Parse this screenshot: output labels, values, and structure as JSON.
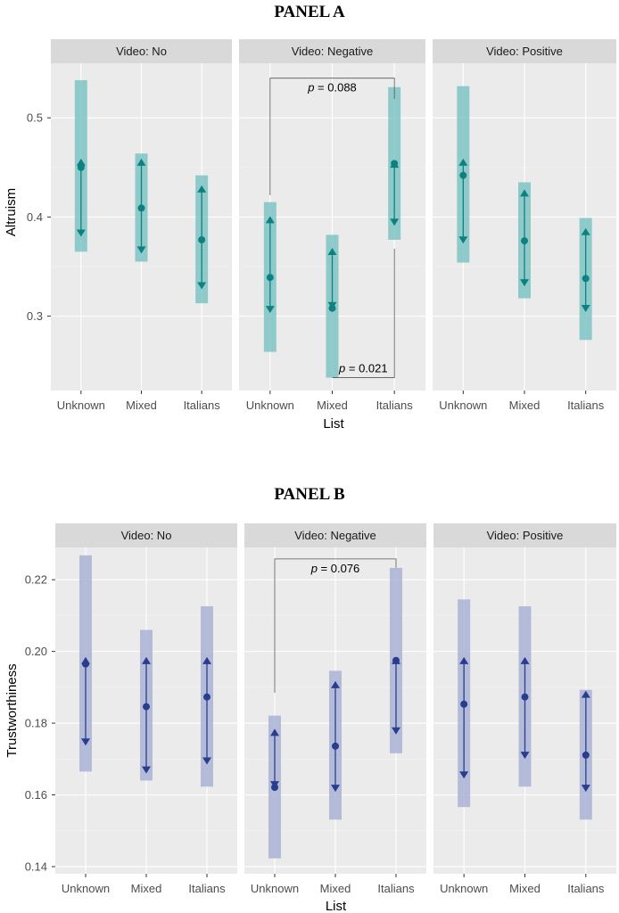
{
  "chart_data": [
    {
      "type": "errorbar",
      "title": "PANEL A",
      "xlabel": "List",
      "ylabel": "Altruism",
      "color": "#0e8080",
      "band_color": "#7fc4c4",
      "ylim": [
        0.225,
        0.555
      ],
      "yticks": [
        "0.3",
        "0.4",
        "0.5"
      ],
      "ytick_values": [
        0.3,
        0.4,
        0.5
      ],
      "categories": [
        "Unknown",
        "Mixed",
        "Italians"
      ],
      "facets": [
        {
          "strip": "Video: No",
          "points": [
            {
              "category": "Unknown",
              "mean": 0.45,
              "lower": 0.381,
              "upper": 0.458,
              "band_low": 0.365,
              "band_high": 0.538
            },
            {
              "category": "Mixed",
              "mean": 0.409,
              "lower": 0.364,
              "upper": 0.458,
              "band_low": 0.355,
              "band_high": 0.464
            },
            {
              "category": "Italians",
              "mean": 0.377,
              "lower": 0.328,
              "upper": 0.431,
              "band_low": 0.313,
              "band_high": 0.442
            }
          ],
          "brackets": []
        },
        {
          "strip": "Video: Negative",
          "points": [
            {
              "category": "Unknown",
              "mean": 0.339,
              "lower": 0.304,
              "upper": 0.4,
              "band_low": 0.264,
              "band_high": 0.415
            },
            {
              "category": "Mixed",
              "mean": 0.308,
              "lower": 0.308,
              "upper": 0.368,
              "band_low": 0.238,
              "band_high": 0.382
            },
            {
              "category": "Italians",
              "mean": 0.454,
              "lower": 0.392,
              "upper": 0.456,
              "band_low": 0.377,
              "band_high": 0.531
            }
          ],
          "brackets": [
            {
              "from": "Unknown",
              "to": "Italians",
              "y": 0.54,
              "left_end": 0.422,
              "right_end": 0.519,
              "position": "above",
              "prefix": "p",
              "label": " = 0.088"
            },
            {
              "from": "Mixed",
              "to": "Italians",
              "y": 0.238,
              "left_end": 0.238,
              "right_end": 0.368,
              "position": "below",
              "prefix": "p",
              "label": " = 0.021"
            }
          ]
        },
        {
          "strip": "Video: Positive",
          "points": [
            {
              "category": "Unknown",
              "mean": 0.442,
              "lower": 0.374,
              "upper": 0.458,
              "band_low": 0.354,
              "band_high": 0.532
            },
            {
              "category": "Mixed",
              "mean": 0.376,
              "lower": 0.331,
              "upper": 0.427,
              "band_low": 0.318,
              "band_high": 0.435
            },
            {
              "category": "Italians",
              "mean": 0.338,
              "lower": 0.305,
              "upper": 0.388,
              "band_low": 0.276,
              "band_high": 0.399
            }
          ],
          "brackets": []
        }
      ]
    },
    {
      "type": "errorbar",
      "title": "PANEL B",
      "xlabel": "List",
      "ylabel": "Trustworthiness",
      "color": "#283d8e",
      "band_color": "#a9b3d6",
      "ylim": [
        0.138,
        0.229
      ],
      "yticks": [
        "0.14",
        "0.16",
        "0.18",
        "0.20",
        "0.22"
      ],
      "ytick_values": [
        0.14,
        0.16,
        0.18,
        0.2,
        0.22
      ],
      "categories": [
        "Unknown",
        "Mixed",
        "Italians"
      ],
      "facets": [
        {
          "strip": "Video: No",
          "points": [
            {
              "category": "Unknown",
              "mean": 0.1965,
              "lower": 0.174,
              "upper": 0.1982,
              "band_low": 0.1665,
              "band_high": 0.2268
            },
            {
              "category": "Mixed",
              "mean": 0.1846,
              "lower": 0.1662,
              "upper": 0.1982,
              "band_low": 0.164,
              "band_high": 0.206
            },
            {
              "category": "Italians",
              "mean": 0.1873,
              "lower": 0.1687,
              "upper": 0.1982,
              "band_low": 0.1623,
              "band_high": 0.2126
            }
          ],
          "brackets": []
        },
        {
          "strip": "Video: Negative",
          "points": [
            {
              "category": "Unknown",
              "mean": 0.1621,
              "lower": 0.1621,
              "upper": 0.1782,
              "band_low": 0.1423,
              "band_high": 0.1821
            },
            {
              "category": "Mixed",
              "mean": 0.1736,
              "lower": 0.1611,
              "upper": 0.1915,
              "band_low": 0.1531,
              "band_high": 0.1946
            },
            {
              "category": "Italians",
              "mean": 0.1975,
              "lower": 0.1771,
              "upper": 0.1982,
              "band_low": 0.1716,
              "band_high": 0.2233
            }
          ],
          "brackets": [
            {
              "from": "Unknown",
              "to": "Italians",
              "y": 0.2258,
              "left_end": 0.1885,
              "right_end": 0.2233,
              "position": "above",
              "prefix": "p",
              "label": " = 0.076"
            }
          ]
        },
        {
          "strip": "Video: Positive",
          "points": [
            {
              "category": "Unknown",
              "mean": 0.1853,
              "lower": 0.1648,
              "upper": 0.1982,
              "band_low": 0.1566,
              "band_high": 0.2145
            },
            {
              "category": "Mixed",
              "mean": 0.1873,
              "lower": 0.1703,
              "upper": 0.1982,
              "band_low": 0.1623,
              "band_high": 0.2126
            },
            {
              "category": "Italians",
              "mean": 0.1711,
              "lower": 0.1611,
              "upper": 0.1888,
              "band_low": 0.1531,
              "band_high": 0.1893
            }
          ],
          "brackets": []
        }
      ]
    }
  ]
}
